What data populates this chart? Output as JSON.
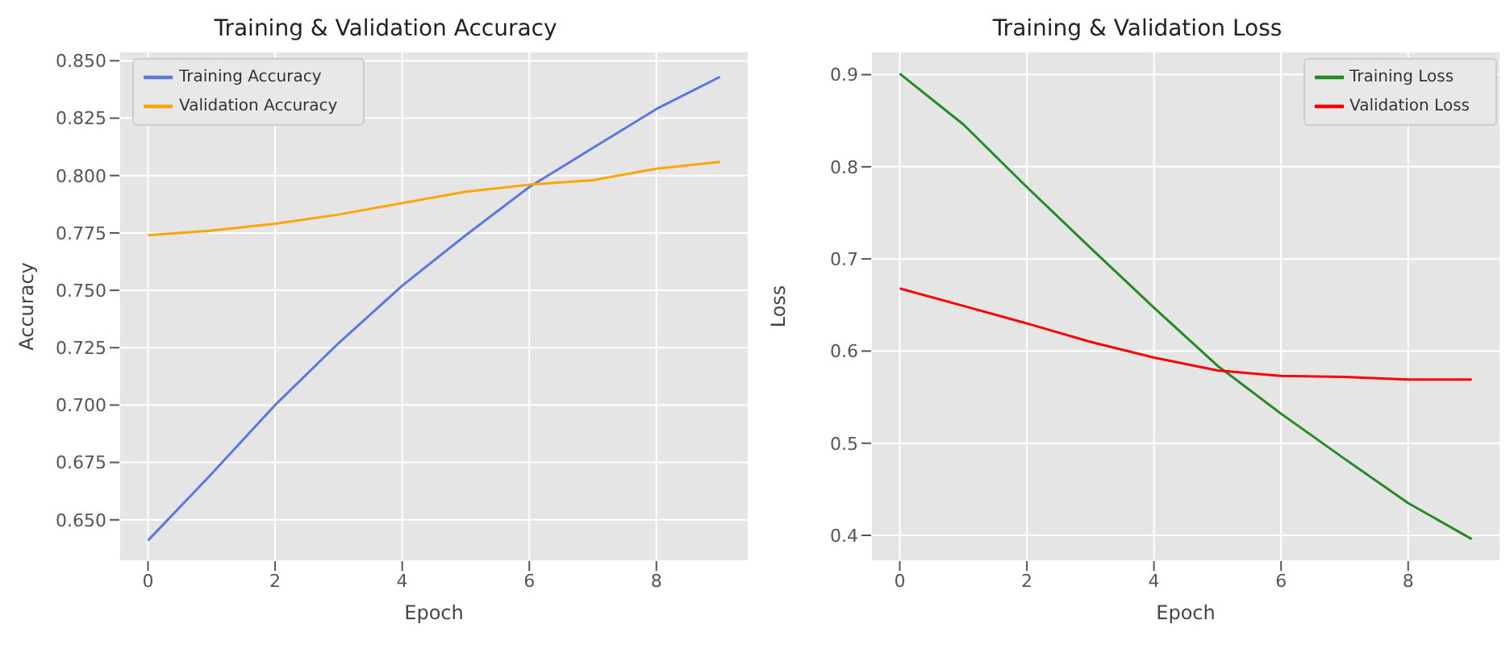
{
  "chart_data": [
    {
      "type": "line",
      "title": "Training & Validation Accuracy",
      "xlabel": "Epoch",
      "ylabel": "Accuracy",
      "x": [
        0,
        1,
        2,
        3,
        4,
        5,
        6,
        7,
        8,
        9
      ],
      "xlim": [
        -0.45,
        9.45
      ],
      "xticks": [
        0,
        2,
        4,
        6,
        8
      ],
      "ylim": [
        0.632,
        0.854
      ],
      "yticks": [
        {
          "value": 0.65,
          "label": "0.650"
        },
        {
          "value": 0.675,
          "label": "0.675"
        },
        {
          "value": 0.7,
          "label": "0.700"
        },
        {
          "value": 0.725,
          "label": "0.725"
        },
        {
          "value": 0.75,
          "label": "0.750"
        },
        {
          "value": 0.775,
          "label": "0.775"
        },
        {
          "value": 0.8,
          "label": "0.800"
        },
        {
          "value": 0.825,
          "label": "0.825"
        },
        {
          "value": 0.85,
          "label": "0.850"
        }
      ],
      "grid": true,
      "legend": "top left",
      "marker": "none",
      "line_style": "solid",
      "series": [
        {
          "name": "Training Accuracy",
          "color": "#5b78e0",
          "values": [
            0.641,
            0.67,
            0.7,
            0.727,
            0.752,
            0.774,
            0.795,
            0.812,
            0.829,
            0.843
          ]
        },
        {
          "name": "Validation Accuracy",
          "color": "#ffa500",
          "values": [
            0.774,
            0.776,
            0.779,
            0.783,
            0.788,
            0.793,
            0.796,
            0.798,
            0.803,
            0.806
          ]
        }
      ]
    },
    {
      "type": "line",
      "title": "Training & Validation Loss",
      "xlabel": "Epoch",
      "ylabel": "Loss",
      "x": [
        0,
        1,
        2,
        3,
        4,
        5,
        6,
        7,
        8,
        9
      ],
      "xlim": [
        -0.45,
        9.45
      ],
      "xticks": [
        0,
        2,
        4,
        6,
        8
      ],
      "ylim": [
        0.372,
        0.925
      ],
      "yticks": [
        0.4,
        0.5,
        0.6,
        0.7,
        0.8,
        0.9
      ],
      "grid": true,
      "legend": "top right",
      "marker": "none",
      "line_style": "solid",
      "series": [
        {
          "name": "Training Loss",
          "color": "#228b22",
          "values": [
            0.901,
            0.846,
            0.778,
            0.712,
            0.647,
            0.584,
            0.532,
            0.483,
            0.435,
            0.396
          ]
        },
        {
          "name": "Validation Loss",
          "color": "#ff0000",
          "values": [
            0.668,
            0.649,
            0.63,
            0.61,
            0.593,
            0.579,
            0.573,
            0.572,
            0.569,
            0.569
          ]
        }
      ]
    }
  ]
}
